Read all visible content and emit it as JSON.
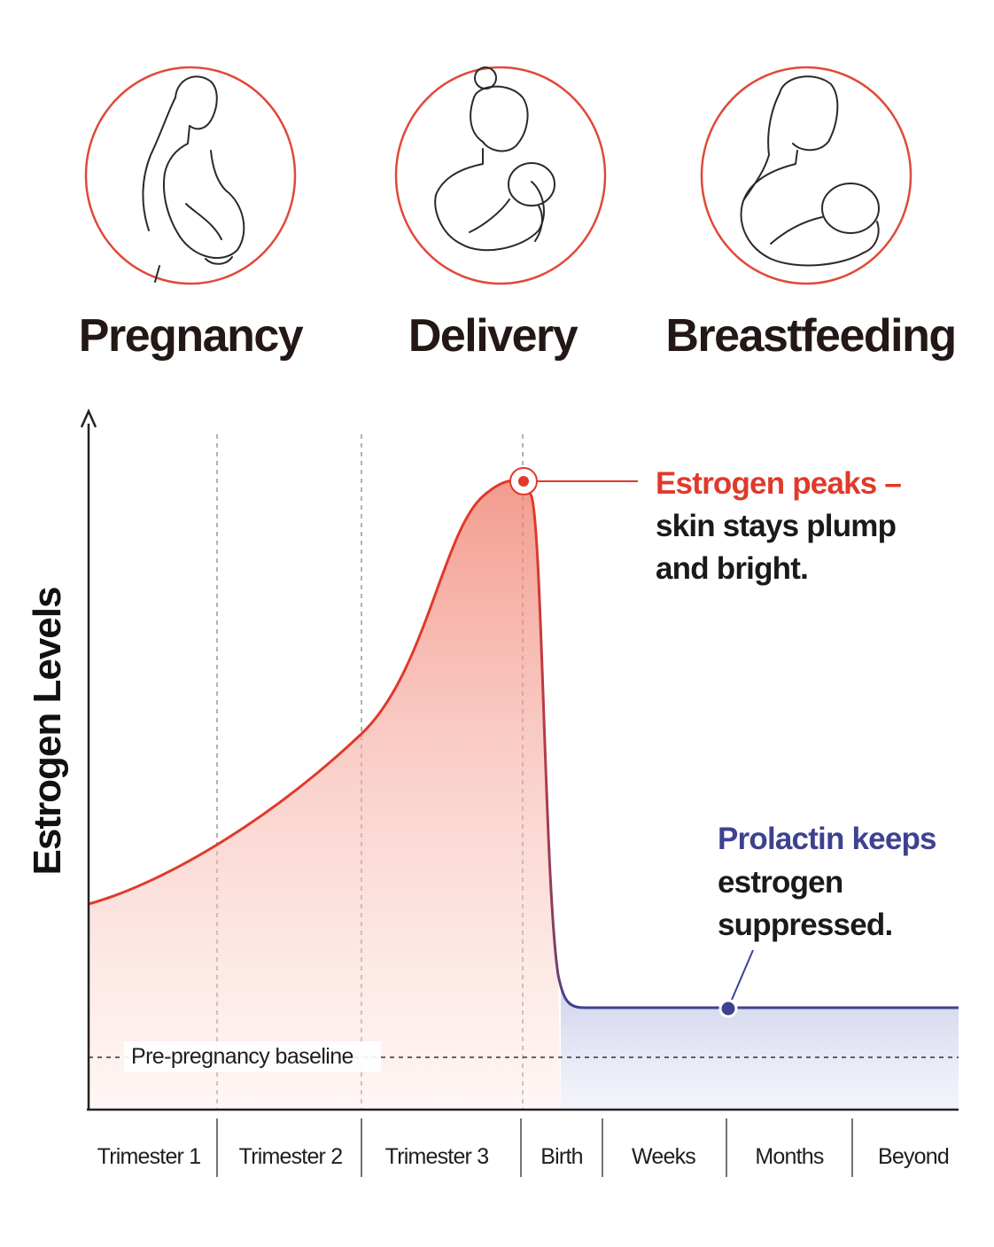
{
  "header": {
    "stages": [
      "Pregnancy",
      "Delivery",
      "Breastfeeding"
    ]
  },
  "chart": {
    "y_axis_label": "Estrogen Levels",
    "x_categories": [
      "Trimester 1",
      "Trimester 2",
      "Trimester 3",
      "Birth",
      "Weeks",
      "Months",
      "Beyond"
    ],
    "baseline_label": "Pre-pregnancy baseline",
    "peak_annotation": [
      "Estrogen peaks –",
      "skin stays plump",
      "and bright."
    ],
    "prolactin_annotation": [
      "Prolactin keeps",
      "estrogen",
      "suppressed."
    ]
  }
}
